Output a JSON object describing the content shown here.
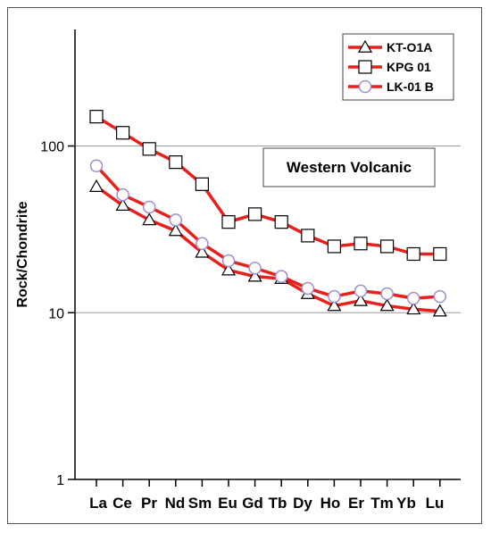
{
  "chart_data": {
    "type": "line",
    "yscale": "log",
    "ylim": [
      1,
      500
    ],
    "ylabel": "Rock/Chondrite",
    "yticks": [
      "1",
      "10",
      "100"
    ],
    "grid": "horizontal at decades",
    "legend_position": "top-right",
    "categories": [
      "La",
      "Ce",
      "Pr",
      "Nd",
      "Sm",
      "Eu",
      "Gd",
      "Tb",
      "Dy",
      "Ho",
      "Er",
      "Tm",
      "Yb",
      "Lu"
    ],
    "category_labels": [
      "La",
      "Ce",
      "Pr",
      "Nd",
      "Sm",
      "Eu",
      "Gd",
      "Tb",
      "Dy",
      "Ho",
      "Er",
      "Tm",
      "Yb",
      "Lu"
    ],
    "annotation": "Western Volcanic",
    "series": [
      {
        "name": "KT-O1A",
        "marker": "triangle",
        "color": "#e8201c",
        "values": [
          57,
          44,
          36,
          31,
          23,
          18,
          16.5,
          16,
          13,
          11,
          11.8,
          11,
          10.5,
          10.2
        ]
      },
      {
        "name": "KPG 01",
        "marker": "square",
        "color": "#e8201c",
        "values": [
          150,
          120,
          96,
          80,
          59,
          35,
          39,
          35,
          29,
          25,
          26,
          25,
          22.5,
          22.5
        ]
      },
      {
        "name": "LK-01 B",
        "marker": "circle",
        "color": "#e8201c",
        "marker_color": "#9f8fc8",
        "values": [
          76,
          51,
          43,
          36,
          26,
          20.5,
          18.5,
          16.5,
          14,
          12.5,
          13.5,
          13,
          12.2,
          12.5
        ]
      }
    ]
  }
}
